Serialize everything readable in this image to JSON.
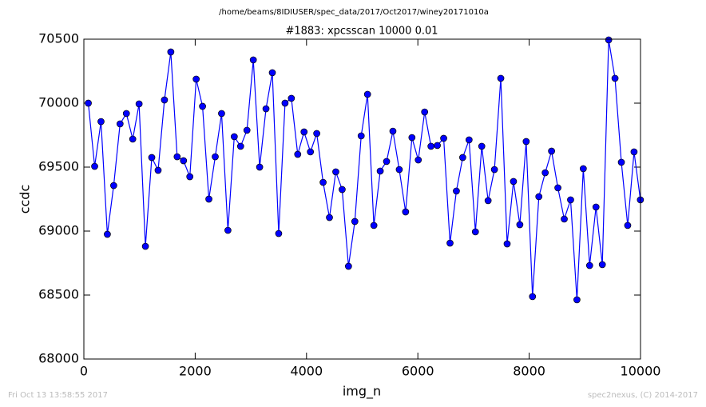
{
  "chart_data": {
    "type": "line",
    "suptitle": "/home/beams/8IDIUSER/spec_data/2017/Oct2017/winey20171010a",
    "title": "#1883: xpcsscan 10000 0.01",
    "xlabel": "img_n",
    "ylabel": "ccdc",
    "footer_left": "Fri Oct 13 13:58:55 2017",
    "footer_right": "spec2nexus, (C) 2014-2017",
    "x": [
      80,
      194,
      308,
      422,
      536,
      650,
      764,
      878,
      992,
      1106,
      1220,
      1334,
      1448,
      1562,
      1676,
      1790,
      1904,
      2018,
      2132,
      2246,
      2360,
      2474,
      2588,
      2702,
      2816,
      2930,
      3044,
      3158,
      3272,
      3386,
      3500,
      3614,
      3728,
      3842,
      3956,
      4070,
      4184,
      4298,
      4412,
      4526,
      4640,
      4754,
      4868,
      4982,
      5096,
      5210,
      5324,
      5438,
      5552,
      5666,
      5780,
      5894,
      6008,
      6122,
      6236,
      6350,
      6464,
      6578,
      6692,
      6806,
      6920,
      7034,
      7148,
      7262,
      7376,
      7490,
      7604,
      7718,
      7832,
      7946,
      8060,
      8174,
      8288,
      8402,
      8516,
      8630,
      8744,
      8858,
      8972,
      9086,
      9200,
      9314,
      9428,
      9542,
      9656,
      9770,
      9884,
      9998
    ],
    "series": [
      {
        "name": "ccdc",
        "color": "#0000ff",
        "values": [
          70000,
          69506,
          69856,
          68975,
          69356,
          69838,
          69919,
          69719,
          69994,
          68881,
          69575,
          69475,
          70025,
          70400,
          69581,
          69550,
          69425,
          70188,
          69975,
          69250,
          69581,
          69919,
          69006,
          69738,
          69663,
          69788,
          70338,
          69500,
          69956,
          70238,
          68981,
          70000,
          70038,
          69600,
          69775,
          69619,
          69763,
          69381,
          69106,
          69463,
          69325,
          68725,
          69075,
          69744,
          70069,
          69044,
          69469,
          69544,
          69781,
          69481,
          69150,
          69731,
          69556,
          69931,
          69663,
          69669,
          69725,
          68906,
          69313,
          69575,
          69713,
          68994,
          69663,
          69238,
          69481,
          70194,
          68900,
          69388,
          69050,
          69700,
          68488,
          69269,
          69456,
          69625,
          69338,
          69094,
          69244,
          68463,
          69488,
          68731,
          69188,
          68738,
          70494,
          70194,
          69538,
          69044,
          69619,
          69244
        ]
      }
    ],
    "xlim": [
      0,
      10000
    ],
    "xticks": [
      0,
      2000,
      4000,
      6000,
      8000,
      10000
    ],
    "ylim": [
      68000,
      70500
    ],
    "yticks": [
      68000,
      68500,
      69000,
      69500,
      70000,
      70500
    ]
  }
}
